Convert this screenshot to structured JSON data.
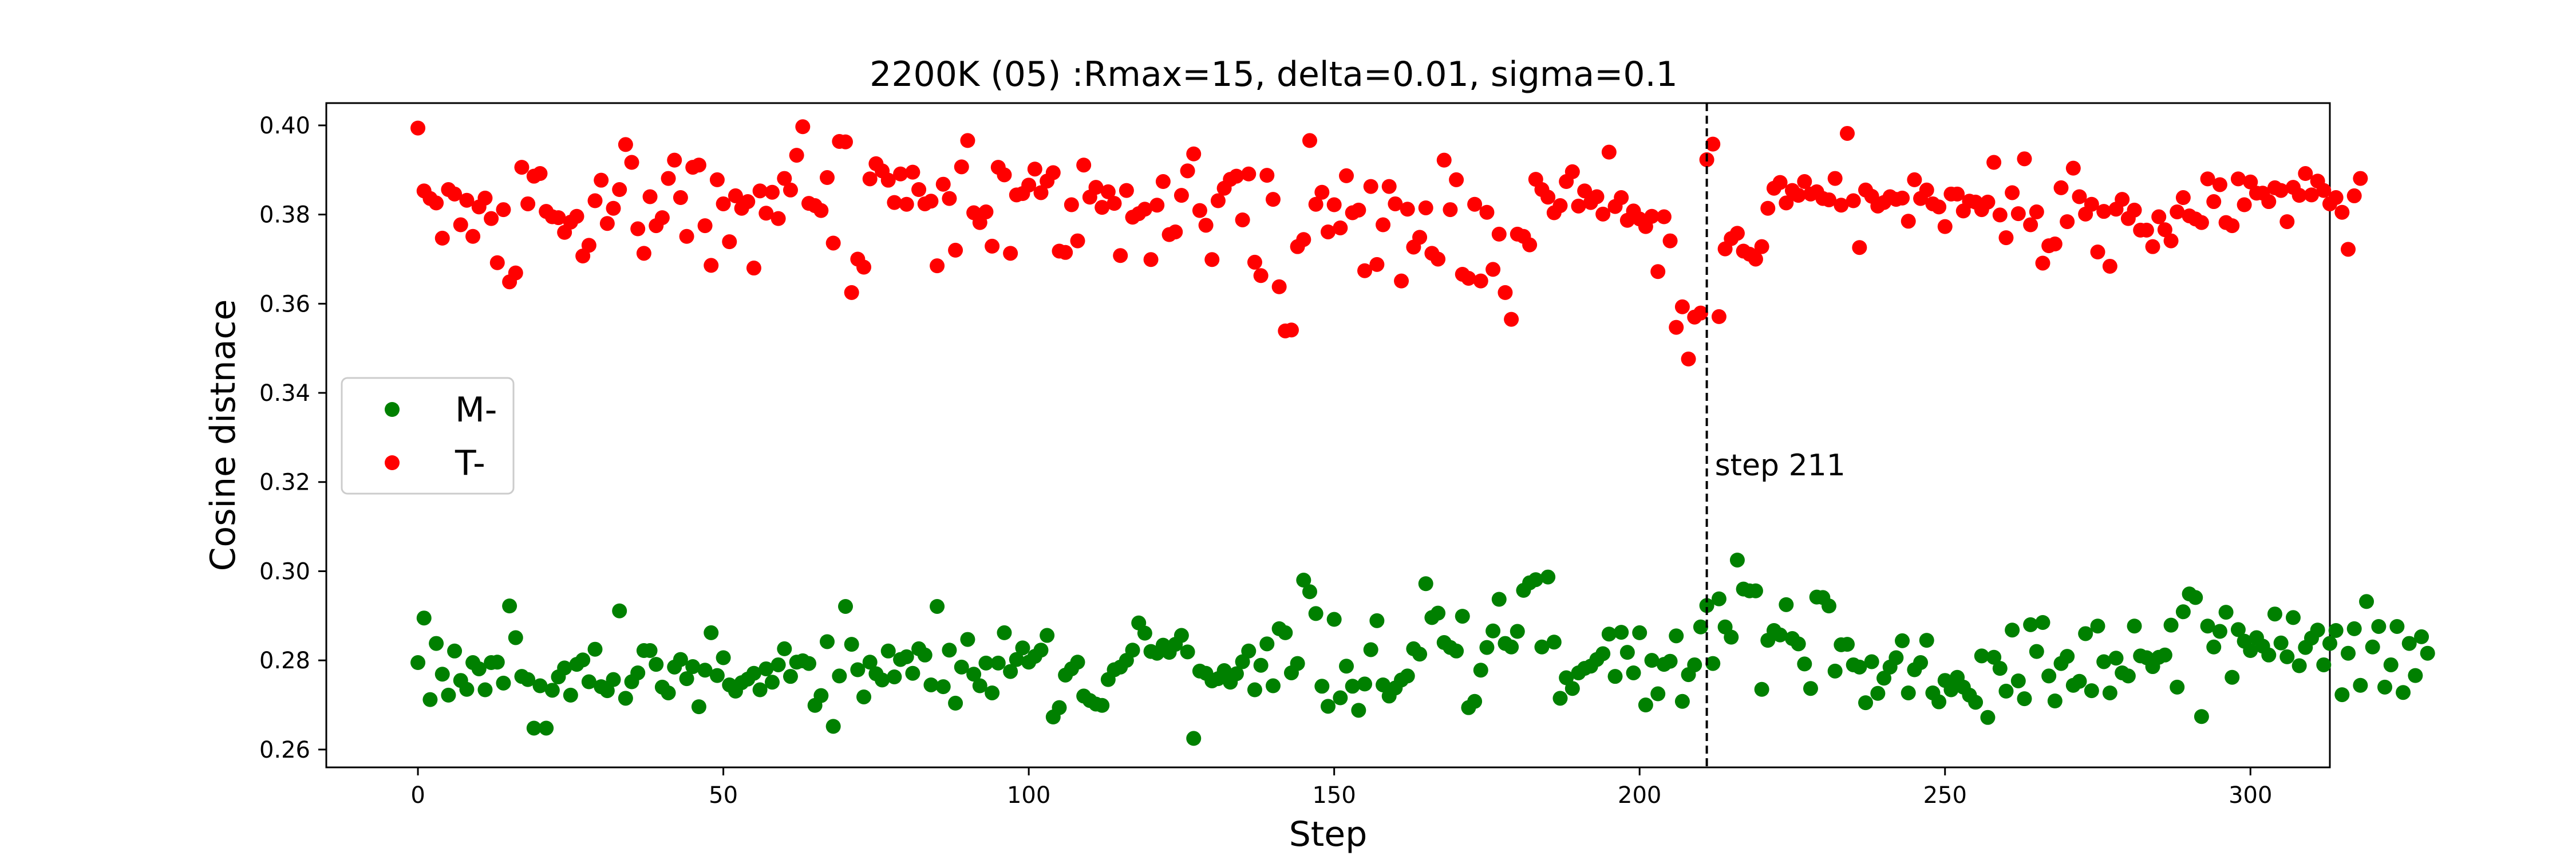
{
  "chart_data": {
    "type": "scatter",
    "title": "2200K (05) :Rmax=15, delta=0.01, sigma=0.1",
    "xlabel": "Step",
    "ylabel": "Cosine distnace",
    "xlim": [
      -15,
      313
    ],
    "ylim": [
      0.256,
      0.405
    ],
    "xticks": [
      0,
      50,
      100,
      150,
      200,
      250,
      300
    ],
    "yticks": [
      0.26,
      0.28,
      0.3,
      0.32,
      0.34,
      0.36,
      0.38,
      0.4
    ],
    "ytick_labels": [
      "0.26",
      "0.28",
      "0.30",
      "0.32",
      "0.34",
      "0.36",
      "0.38",
      "0.40"
    ],
    "xtick_labels": [
      "0",
      "50",
      "100",
      "150",
      "200",
      "250",
      "300"
    ],
    "grid": false,
    "legend_position": "center-left",
    "series": [
      {
        "name": "M-",
        "color": "#008000",
        "values": [
          0.2795,
          0.2895,
          0.2712,
          0.2838,
          0.2769,
          0.2722,
          0.2821,
          0.2755,
          0.2735,
          0.2795,
          0.2781,
          0.2734,
          0.2795,
          0.2796,
          0.2749,
          0.2922,
          0.2851,
          0.2764,
          0.2757,
          0.2648,
          0.2743,
          0.2648,
          0.2733,
          0.2763,
          0.2783,
          0.2722,
          0.2791,
          0.2801,
          0.2752,
          0.2825,
          0.2741,
          0.2732,
          0.2757,
          0.2911,
          0.2715,
          0.2752,
          0.2772,
          0.2822,
          0.2822,
          0.2791,
          0.274,
          0.2727,
          0.2785,
          0.2802,
          0.2759,
          0.2786,
          0.2696,
          0.2778,
          0.2862,
          0.2766,
          0.2806,
          0.2745,
          0.2731,
          0.275,
          0.2758,
          0.2771,
          0.2734,
          0.2781,
          0.2751,
          0.279,
          0.2826,
          0.2764,
          0.2796,
          0.2799,
          0.2793,
          0.2699,
          0.2721,
          0.2842,
          0.2652,
          0.2765,
          0.2921,
          0.2836,
          0.2779,
          0.2718,
          0.2796,
          0.277,
          0.2756,
          0.2821,
          0.2763,
          0.2802,
          0.2808,
          0.2771,
          0.2826,
          0.2812,
          0.2745,
          0.2921,
          0.2741,
          0.2823,
          0.2704,
          0.2785,
          0.2847,
          0.2769,
          0.2743,
          0.2794,
          0.2727,
          0.2794,
          0.2862,
          0.2775,
          0.2802,
          0.2828,
          0.2796,
          0.2809,
          0.2823,
          0.2856,
          0.2673,
          0.2694,
          0.2767,
          0.2781,
          0.2796,
          0.272,
          0.271,
          0.2702,
          0.2699,
          0.2757,
          0.2779,
          0.2785,
          0.28,
          0.2823,
          0.2884,
          0.2861,
          0.282,
          0.2816,
          0.2834,
          0.2818,
          0.2836,
          0.2856,
          0.2819,
          0.2625,
          0.2776,
          0.2771,
          0.2754,
          0.2759,
          0.2777,
          0.2751,
          0.277,
          0.2797,
          0.2821,
          0.2734,
          0.2789,
          0.2837,
          0.2743,
          0.2871,
          0.2862,
          0.2772,
          0.2793,
          0.298,
          0.2954,
          0.2905,
          0.2742,
          0.2697,
          0.2892,
          0.2716,
          0.2787,
          0.2742,
          0.2688,
          0.2747,
          0.2824,
          0.2889,
          0.2745,
          0.272,
          0.2738,
          0.2756,
          0.2765,
          0.2826,
          0.2814,
          0.2972,
          0.2896,
          0.2906,
          0.284,
          0.2829,
          0.2821,
          0.2899,
          0.2694,
          0.2708,
          0.2778,
          0.2829,
          0.2866,
          0.2937,
          0.2838,
          0.283,
          0.2865,
          0.2957,
          0.2974,
          0.2981,
          0.283,
          0.2987,
          0.2841,
          0.2715,
          0.2761,
          0.2737,
          0.2772,
          0.2782,
          0.2787,
          0.2802,
          0.2815,
          0.2859,
          0.2764,
          0.2863,
          0.2818,
          0.2772,
          0.2862,
          0.27,
          0.28,
          0.2725,
          0.2791,
          0.2798,
          0.2855,
          0.2708,
          0.2768,
          0.279,
          0.2875,
          0.2923,
          0.2793,
          0.2938,
          0.2875,
          0.2852,
          0.3025,
          0.296,
          0.2956,
          0.2956,
          0.2735,
          0.2845,
          0.2867,
          0.2857,
          0.2925,
          0.2849,
          0.2837,
          0.2792,
          0.2737,
          0.2942,
          0.2941,
          0.2922,
          0.2776,
          0.2835,
          0.2836,
          0.279,
          0.2785,
          0.2705,
          0.2797,
          0.2726,
          0.276,
          0.2785,
          0.2806,
          0.2844,
          0.2727,
          0.2779,
          0.2795,
          0.2845,
          0.2727,
          0.2707,
          0.2755,
          0.2734,
          0.2762,
          0.274,
          0.2722,
          0.2706,
          0.281,
          0.2672,
          0.2807,
          0.2782,
          0.2731,
          0.2868,
          0.2754,
          0.2714,
          0.288,
          0.282,
          0.2885,
          0.2765,
          0.2709,
          0.2793,
          0.2809,
          0.2744,
          0.2753,
          0.286,
          0.2732,
          0.2877,
          0.2797,
          0.2727,
          0.2805,
          0.2772,
          0.2765,
          0.2877,
          0.281,
          0.2806,
          0.2786,
          0.2807,
          0.2812,
          0.2879,
          0.274,
          0.2909,
          0.2949,
          0.2941,
          0.2674,
          0.2877,
          0.283,
          0.2865,
          0.2908,
          0.2762,
          0.2869,
          0.2843,
          0.2822,
          0.2851,
          0.2832,
          0.2812,
          0.2904,
          0.2839,
          0.2808,
          0.2896,
          0.2788,
          0.2829,
          0.285,
          0.2868,
          0.279,
          0.2838,
          0.2867,
          0.2723,
          0.2816,
          0.2871,
          0.2744,
          0.2932,
          0.283,
          0.2876,
          0.274,
          0.279,
          0.2876,
          0.2728,
          0.2838,
          0.2766,
          0.2853,
          0.2816
        ]
      },
      {
        "name": "T-",
        "color": "#ff0000",
        "values": [
          0.3994,
          0.3853,
          0.3836,
          0.3826,
          0.3747,
          0.3856,
          0.3846,
          0.3777,
          0.3832,
          0.3751,
          0.3817,
          0.3837,
          0.3791,
          0.3692,
          0.3811,
          0.3649,
          0.3669,
          0.3906,
          0.3824,
          0.3886,
          0.3892,
          0.3807,
          0.3795,
          0.3793,
          0.376,
          0.3783,
          0.3796,
          0.3707,
          0.3731,
          0.3831,
          0.3877,
          0.378,
          0.3814,
          0.3856,
          0.3957,
          0.3917,
          0.3768,
          0.3713,
          0.384,
          0.3775,
          0.3793,
          0.3881,
          0.3922,
          0.3838,
          0.3751,
          0.3906,
          0.3911,
          0.3775,
          0.3686,
          0.3878,
          0.3824,
          0.3739,
          0.3842,
          0.3814,
          0.3829,
          0.368,
          0.3853,
          0.3803,
          0.385,
          0.3791,
          0.3881,
          0.3855,
          0.3933,
          0.3997,
          0.3825,
          0.382,
          0.3809,
          0.3883,
          0.3736,
          0.3964,
          0.3963,
          0.3625,
          0.37,
          0.3682,
          0.388,
          0.3914,
          0.3898,
          0.3877,
          0.3827,
          0.3891,
          0.3823,
          0.3895,
          0.3856,
          0.3824,
          0.383,
          0.3685,
          0.3868,
          0.3836,
          0.372,
          0.3907,
          0.3966,
          0.3804,
          0.3782,
          0.3806,
          0.3729,
          0.3906,
          0.3889,
          0.3713,
          0.3844,
          0.3847,
          0.3866,
          0.3902,
          0.3849,
          0.3875,
          0.3894,
          0.3718,
          0.3715,
          0.3822,
          0.3741,
          0.3911,
          0.3839,
          0.3861,
          0.3816,
          0.3851,
          0.3825,
          0.3708,
          0.3854,
          0.3794,
          0.3802,
          0.3812,
          0.3699,
          0.3821,
          0.3874,
          0.3755,
          0.3761,
          0.3843,
          0.3898,
          0.3936,
          0.3809,
          0.3776,
          0.3699,
          0.3831,
          0.3859,
          0.3879,
          0.3886,
          0.3788,
          0.3891,
          0.3693,
          0.3663,
          0.3888,
          0.3834,
          0.3638,
          0.3539,
          0.3541,
          0.3728,
          0.3744,
          0.3966,
          0.3823,
          0.385,
          0.3761,
          0.3822,
          0.377,
          0.3887,
          0.3804,
          0.381,
          0.3674,
          0.3863,
          0.3688,
          0.3777,
          0.3863,
          0.3824,
          0.3651,
          0.3812,
          0.3727,
          0.3749,
          0.3815,
          0.3713,
          0.37,
          0.3922,
          0.3811,
          0.3878,
          0.3666,
          0.3657,
          0.3823,
          0.3651,
          0.3805,
          0.3677,
          0.3756,
          0.3625,
          0.3565,
          0.3756,
          0.3751,
          0.3732,
          0.3879,
          0.3856,
          0.3839,
          0.3804,
          0.382,
          0.3874,
          0.3896,
          0.3819,
          0.3853,
          0.3827,
          0.384,
          0.3801,
          0.394,
          0.3818,
          0.3838,
          0.3787,
          0.3808,
          0.379,
          0.3773,
          0.3796,
          0.3672,
          0.3795,
          0.3741,
          0.3547,
          0.3593,
          0.3476,
          0.357,
          0.3579,
          0.3923,
          0.3958,
          0.3571,
          0.3723,
          0.3746,
          0.3758,
          0.3718,
          0.3711,
          0.37,
          0.3728,
          0.3814,
          0.3859,
          0.3872,
          0.3826,
          0.3854,
          0.3843,
          0.3874,
          0.3846,
          0.3851,
          0.3836,
          0.3833,
          0.3881,
          0.3821,
          0.3982,
          0.3831,
          0.3726,
          0.3855,
          0.3841,
          0.3819,
          0.3827,
          0.384,
          0.3834,
          0.3837,
          0.3785,
          0.3878,
          0.3836,
          0.3855,
          0.3824,
          0.3817,
          0.3773,
          0.3846,
          0.3846,
          0.3808,
          0.383,
          0.3828,
          0.3811,
          0.3828,
          0.3917,
          0.3799,
          0.3748,
          0.3849,
          0.3802,
          0.3925,
          0.3777,
          0.3806,
          0.3691,
          0.373,
          0.3734,
          0.386,
          0.3784,
          0.3904,
          0.384,
          0.3801,
          0.3823,
          0.3716,
          0.3807,
          0.3684,
          0.3812,
          0.3834,
          0.3791,
          0.381,
          0.3765,
          0.3765,
          0.3728,
          0.3795,
          0.3766,
          0.3741,
          0.3806,
          0.3838,
          0.3797,
          0.379,
          0.3782,
          0.388,
          0.3829,
          0.3867,
          0.3782,
          0.3775,
          0.388,
          0.3822,
          0.3873,
          0.3848,
          0.3848,
          0.3829,
          0.386,
          0.3854,
          0.3784,
          0.3861,
          0.3843,
          0.3892,
          0.3844,
          0.3875,
          0.3854,
          0.3824,
          0.3838,
          0.3805,
          0.3722,
          0.3842,
          0.3881
        ]
      }
    ],
    "annotations": [
      {
        "type": "vline",
        "x": 211,
        "style": "dashed",
        "text": "step 211"
      }
    ]
  }
}
